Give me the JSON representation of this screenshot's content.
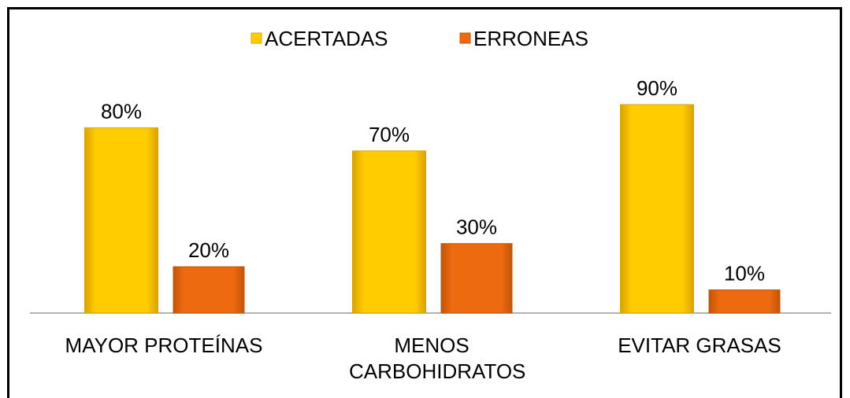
{
  "chart_data": {
    "type": "bar",
    "categories": [
      "MAYOR PROTEÍNAS",
      "MENOS CARBOHIDRATOS",
      "EVITAR GRASAS"
    ],
    "series": [
      {
        "name": "ACERTADAS",
        "color": "#FFCC00",
        "values": [
          80,
          70,
          90
        ],
        "value_labels": [
          "80%",
          "70%",
          "90%"
        ]
      },
      {
        "name": "ERRONEAS",
        "color": "#EE6A10",
        "values": [
          20,
          30,
          10
        ],
        "value_labels": [
          "20%",
          "30%",
          "10%"
        ]
      }
    ],
    "legend": "top"
  }
}
